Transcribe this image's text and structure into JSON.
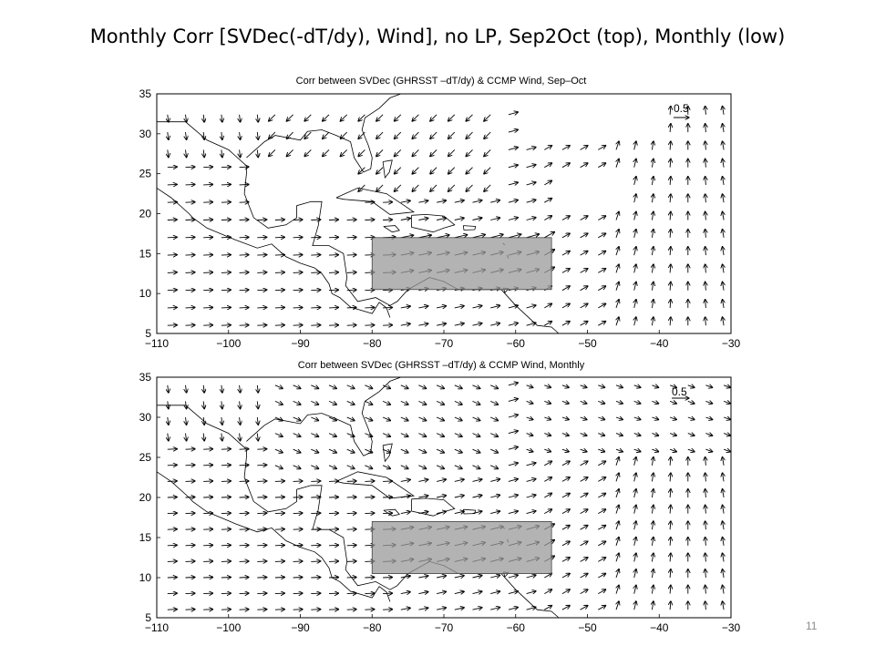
{
  "slide": {
    "title": "Monthly Corr  [SVDec(-dT/dy), Wind], no LP, Sep2Oct (top), Monthly (low)",
    "page_number": "11"
  },
  "panels": [
    {
      "id": "top",
      "title": "Corr between SVDec (GHRSST –dT/dy) & CCMP Wind, Sep–Oct",
      "reference_vector_label": "0.5",
      "x_ticks": [
        "−110",
        "−100",
        "−90",
        "−80",
        "−70",
        "−60",
        "−50",
        "−40",
        "−30"
      ],
      "y_ticks": [
        "35",
        "30",
        "25",
        "20",
        "15",
        "10",
        "5"
      ]
    },
    {
      "id": "bottom",
      "title": "Corr between SVDec (GHRSST –dT/dy) & CCMP Wind, Monthly",
      "reference_vector_label": "0.5",
      "x_ticks": [
        "−110",
        "−100",
        "−90",
        "−80",
        "−70",
        "−60",
        "−50",
        "−40",
        "−30"
      ],
      "y_ticks": [
        "35",
        "30",
        "25",
        "20",
        "15",
        "10",
        "5"
      ]
    }
  ],
  "chart_data": [
    {
      "type": "vector_field",
      "title": "Corr between SVDec (GHRSST –dT/dy) & CCMP Wind, Sep–Oct",
      "xlim": [
        -110,
        -30
      ],
      "ylim": [
        5,
        35
      ],
      "shaded_box": {
        "lon": [
          -80,
          -55
        ],
        "lat": [
          10.5,
          17
        ]
      },
      "reference_vector": 0.5
    },
    {
      "type": "vector_field",
      "title": "Corr between SVDec (GHRSST –dT/dy) & CCMP Wind, Monthly",
      "xlim": [
        -110,
        -30
      ],
      "ylim": [
        5,
        35
      ],
      "shaded_box": {
        "lon": [
          -80,
          -55
        ],
        "lat": [
          10.5,
          17
        ]
      },
      "reference_vector": 0.5
    }
  ]
}
